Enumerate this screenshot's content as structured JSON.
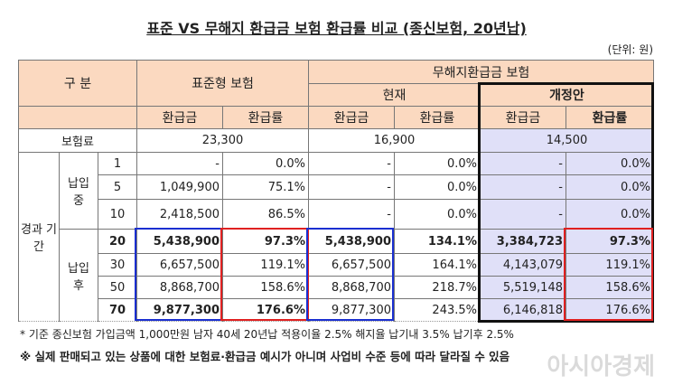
{
  "title": "표준 VS 무해지 환급금 보험 환급률 비교 (종신보험, 20년납)",
  "unit": "(단위: 원)",
  "headers": {
    "category": "구 분",
    "standard": "표준형 보험",
    "nonrefund": "무해지환급금 보험",
    "current": "현재",
    "revised": "개정안",
    "refund": "환급금",
    "rate": "환급률"
  },
  "premium": {
    "label": "보험료",
    "standard": "23,300",
    "current": "16,900",
    "revised": "14,500"
  },
  "period_label": "경과 기간",
  "during_label": "납입 중",
  "after_label": "납입 후",
  "rows": [
    {
      "year": "1",
      "std_amt": "-",
      "std_rate": "0.0%",
      "cur_amt": "-",
      "cur_rate": "0.0%",
      "rev_amt": "-",
      "rev_rate": "0.0%"
    },
    {
      "year": "5",
      "std_amt": "1,049,900",
      "std_rate": "75.1%",
      "cur_amt": "-",
      "cur_rate": "0.0%",
      "rev_amt": "-",
      "rev_rate": "0.0%"
    },
    {
      "year": "10",
      "std_amt": "2,418,500",
      "std_rate": "86.5%",
      "cur_amt": "-",
      "cur_rate": "0.0%",
      "rev_amt": "-",
      "rev_rate": "0.0%"
    },
    {
      "year": "20",
      "std_amt": "5,438,900",
      "std_rate": "97.3%",
      "cur_amt": "5,438,900",
      "cur_rate": "134.1%",
      "rev_amt": "3,384,723",
      "rev_rate": "97.3%"
    },
    {
      "year": "30",
      "std_amt": "6,657,500",
      "std_rate": "119.1%",
      "cur_amt": "6,657,500",
      "cur_rate": "164.1%",
      "rev_amt": "4,143,079",
      "rev_rate": "119.1%"
    },
    {
      "year": "50",
      "std_amt": "8,868,700",
      "std_rate": "158.6%",
      "cur_amt": "8,868,700",
      "cur_rate": "218.7%",
      "rev_amt": "5,519,148",
      "rev_rate": "158.6%"
    },
    {
      "year": "70",
      "std_amt": "9,877,300",
      "std_rate": "176.6%",
      "cur_amt": "9,877,300",
      "cur_rate": "243.5%",
      "rev_amt": "6,146,818",
      "rev_rate": "176.6%"
    }
  ],
  "note1": "* 기준 종신보험 가입금액 1,000만원 남자 40세 20년납   적용이율 2.5% 해지율 납기내 3.5% 납기후 2.5%",
  "note2": "※ 실제 판매되고 있는 상품에 대한 보험료·환급금 예시가 아니며 사업비 수준 등에 따라 달라질 수 있음",
  "watermark": "아시아경제",
  "colors": {
    "header": "#fbd9c0",
    "revised": "#e0e0f8",
    "blue": "#1a2fd0",
    "red": "#e02020"
  }
}
